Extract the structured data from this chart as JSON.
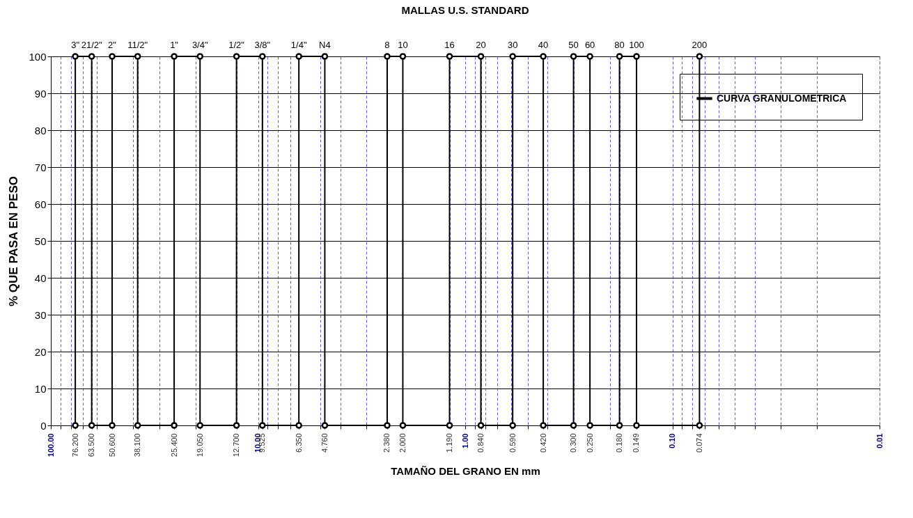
{
  "chart_data": {
    "type": "line",
    "title": "MALLAS U.S. STANDARD",
    "xlabel": "TAMAÑO DEL GRANO EN mm",
    "ylabel": "% QUE PASA EN PESO",
    "log": "x",
    "grid": true,
    "legend": "top right",
    "marker": "circle",
    "line_style": "solid",
    "xlim": [
      100,
      0.01
    ],
    "ylim": [
      0,
      100
    ],
    "yticks": [
      0,
      10,
      20,
      30,
      40,
      50,
      60,
      70,
      80,
      90,
      100
    ],
    "xticks": [
      {
        "value": 100,
        "label": "100.00"
      },
      {
        "value": 10,
        "label": "10.00"
      },
      {
        "value": 1,
        "label": "1.00"
      },
      {
        "value": 0.1,
        "label": "0.10"
      },
      {
        "value": 0.01,
        "label": "0.01"
      },
      {
        "value": 76.2,
        "label": "76.200"
      },
      {
        "value": 63.5,
        "label": "63.500"
      },
      {
        "value": 50.6,
        "label": "50.600"
      },
      {
        "value": 38.1,
        "label": "38.100"
      },
      {
        "value": 25.4,
        "label": "25.400"
      },
      {
        "value": 19.05,
        "label": "19.050"
      },
      {
        "value": 12.7,
        "label": "12.700"
      },
      {
        "value": 9.525,
        "label": "9.525"
      },
      {
        "value": 6.35,
        "label": "6.350"
      },
      {
        "value": 4.76,
        "label": "4.760"
      },
      {
        "value": 2.38,
        "label": "2.380"
      },
      {
        "value": 2,
        "label": "2.000"
      },
      {
        "value": 1.19,
        "label": "1.190"
      },
      {
        "value": 0.84,
        "label": "0.840"
      },
      {
        "value": 0.59,
        "label": "0.590"
      },
      {
        "value": 0.42,
        "label": "0.420"
      },
      {
        "value": 0.3,
        "label": "0.300"
      },
      {
        "value": 0.25,
        "label": "0.250"
      },
      {
        "value": 0.18,
        "label": "0.180"
      },
      {
        "value": 0.149,
        "label": "0.149"
      },
      {
        "value": 0.074,
        "label": "0.074"
      },
      {
        "value": 90,
        "label": null
      },
      {
        "value": 80,
        "label": null
      },
      {
        "value": 70,
        "label": null
      },
      {
        "value": 60,
        "label": null
      },
      {
        "value": 40,
        "label": null
      },
      {
        "value": 30,
        "label": null
      },
      {
        "value": 20,
        "label": null
      },
      {
        "value": 9,
        "label": null
      },
      {
        "value": 8,
        "label": null
      },
      {
        "value": 7,
        "label": null
      },
      {
        "value": 5,
        "label": null
      },
      {
        "value": 4,
        "label": null
      },
      {
        "value": 3,
        "label": null
      },
      {
        "value": 0.9,
        "label": null
      },
      {
        "value": 0.8,
        "label": null
      },
      {
        "value": 0.7,
        "label": null
      },
      {
        "value": 0.6,
        "label": null
      },
      {
        "value": 0.5,
        "label": null
      },
      {
        "value": 0.4,
        "label": null
      },
      {
        "value": 0.2,
        "label": null
      },
      {
        "value": 0.09,
        "label": null
      },
      {
        "value": 0.08,
        "label": null
      },
      {
        "value": 0.07,
        "label": null
      },
      {
        "value": 0.06,
        "label": null
      },
      {
        "value": 0.05,
        "label": null
      },
      {
        "value": 0.04,
        "label": null
      },
      {
        "value": 0.03,
        "label": null
      },
      {
        "value": 0.02,
        "label": null
      }
    ],
    "annotations": [
      {
        "text": "3\"",
        "x": 76.2,
        "y": 100
      },
      {
        "text": "21/2\"",
        "x": 63.5,
        "y": 100
      },
      {
        "text": "2\"",
        "x": 50.6,
        "y": 100
      },
      {
        "text": "11/2\"",
        "x": 38.1,
        "y": 100
      },
      {
        "text": "1\"",
        "x": 25.4,
        "y": 100
      },
      {
        "text": "3/4\"",
        "x": 19.05,
        "y": 100
      },
      {
        "text": "1/2\"",
        "x": 12.7,
        "y": 100
      },
      {
        "text": "3/8\"",
        "x": 9.525,
        "y": 100
      },
      {
        "text": "1/4\"",
        "x": 6.35,
        "y": 100
      },
      {
        "text": "N4",
        "x": 4.76,
        "y": 100
      },
      {
        "text": "8",
        "x": 2.38,
        "y": 100
      },
      {
        "text": "10",
        "x": 2,
        "y": 100
      },
      {
        "text": "16",
        "x": 1.19,
        "y": 100
      },
      {
        "text": "20",
        "x": 0.84,
        "y": 100
      },
      {
        "text": "30",
        "x": 0.59,
        "y": 100
      },
      {
        "text": "40",
        "x": 0.42,
        "y": 100
      },
      {
        "text": "50",
        "x": 0.3,
        "y": 100
      },
      {
        "text": "60",
        "x": 0.25,
        "y": 100
      },
      {
        "text": "80",
        "x": 0.18,
        "y": 100
      },
      {
        "text": "100",
        "x": 0.149,
        "y": 100
      },
      {
        "text": "200",
        "x": 0.074,
        "y": 100
      }
    ],
    "series": [
      {
        "name": "CURVA GRANULOMETRICA",
        "color": "#000000",
        "x": [
          76.2,
          76.2,
          63.5,
          63.5,
          50.6,
          50.6,
          38.1,
          38.1,
          25.4,
          25.4,
          19.05,
          19.05,
          12.7,
          12.7,
          9.525,
          9.525,
          6.35,
          6.35,
          4.76,
          4.76,
          2.38,
          2.38,
          2,
          2,
          1.19,
          1.19,
          0.84,
          0.84,
          0.59,
          0.59,
          0.42,
          0.42,
          0.3,
          0.3,
          0.25,
          0.25,
          0.18,
          0.18,
          0.149,
          0.149,
          0.074,
          0.074
        ],
        "values": [
          0,
          100,
          100,
          0,
          0,
          100,
          100,
          0,
          0,
          100,
          100,
          0,
          0,
          100,
          100,
          0,
          0,
          100,
          100,
          0,
          0,
          100,
          100,
          0,
          0,
          100,
          100,
          0,
          0,
          100,
          100,
          0,
          0,
          100,
          100,
          0,
          0,
          100,
          100,
          0,
          0,
          100
        ]
      }
    ]
  }
}
